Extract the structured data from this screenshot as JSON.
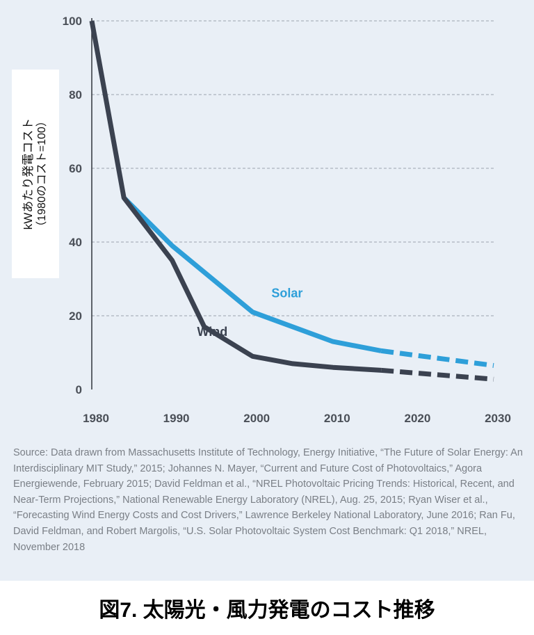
{
  "chart_data": {
    "type": "line",
    "xlim": [
      1980,
      2030
    ],
    "ylim": [
      0,
      100
    ],
    "x_ticks": [
      "1980",
      "1990",
      "2000",
      "2010",
      "2020",
      "2030"
    ],
    "y_ticks": [
      "0",
      "20",
      "40",
      "60",
      "80",
      "100"
    ],
    "ylabel": "kWあたり発電コスト",
    "ylabel_sub": "（1980のコスト=100）",
    "grid": "horizontal dashed",
    "series": [
      {
        "name": "Solar",
        "color": "#2e9fd9",
        "actual": [
          [
            1984,
            52
          ],
          [
            1990,
            39
          ],
          [
            2000,
            21
          ],
          [
            2010,
            13
          ],
          [
            2016,
            10.5
          ]
        ],
        "projected": [
          [
            2016,
            10.5
          ],
          [
            2030,
            6.5
          ]
        ]
      },
      {
        "name": "Wind",
        "color": "#3b4250",
        "actual": [
          [
            1980,
            100
          ],
          [
            1984,
            52
          ],
          [
            1990,
            35
          ],
          [
            1994,
            17
          ],
          [
            2000,
            9
          ],
          [
            2005,
            7
          ],
          [
            2010,
            6
          ],
          [
            2016,
            5.2
          ]
        ],
        "projected": [
          [
            2016,
            5.2
          ],
          [
            2030,
            2.8
          ]
        ]
      }
    ]
  },
  "source_text": "Source: Data drawn from Massachusetts Institute of Technology, Energy Initiative, “The Future of Solar Energy: An Interdisciplinary MIT Study,” 2015; Johannes N. Mayer, “Current and Future Cost of Photovoltaics,” Agora Energiewende, February 2015; David Feldman et al., “NREL Photovoltaic Pricing Trends: Historical, Recent, and Near-Term Projections,” National Renewable Energy Laboratory (NREL), Aug. 25, 2015; Ryan Wiser et al., “Forecasting Wind Energy Costs and Cost Drivers,” Lawrence Berkeley National Laboratory, June 2016; Ran Fu, David Feldman, and Robert Margolis, “U.S. Solar Photovoltaic System Cost Benchmark: Q1 2018,” NREL, November 2018",
  "caption": "図7. 太陽光・風力発電のコスト推移",
  "colors": {
    "background": "#e9eff6",
    "grid": "#9aa3ad",
    "tick_label": "#4a4f57"
  }
}
